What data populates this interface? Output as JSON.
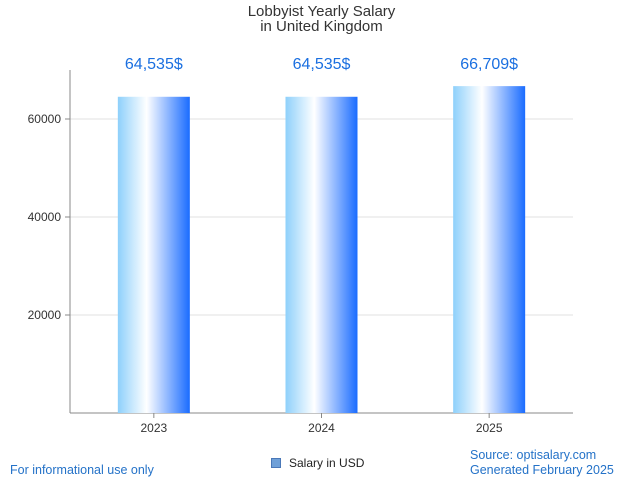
{
  "title": {
    "line1": "Lobbyist Yearly Salary",
    "line2": "in United Kingdom"
  },
  "chart_data": {
    "type": "bar",
    "categories": [
      "2023",
      "2024",
      "2025"
    ],
    "series": [
      {
        "name": "Salary in USD",
        "values": [
          64535,
          64535,
          66709
        ]
      }
    ],
    "data_labels": [
      "64,535$",
      "64,535$",
      "66,709$"
    ],
    "yticks": [
      20000,
      40000,
      60000
    ],
    "ylim": [
      0,
      70000
    ],
    "grid": true,
    "legend_position": "bottom"
  },
  "colors": {
    "bar_light": "#ffffff",
    "bar_mid": "#8ed0fb",
    "bar_dark": "#1a6cff",
    "value_label": "#1a6fe0",
    "footer_text": "#2472c8",
    "grid": "#e2e2e2"
  },
  "footer": {
    "disclaimer": "For informational use only",
    "source": "Source: optisalary.com",
    "generated": "Generated February 2025"
  },
  "legend": {
    "label": "Salary in USD"
  }
}
